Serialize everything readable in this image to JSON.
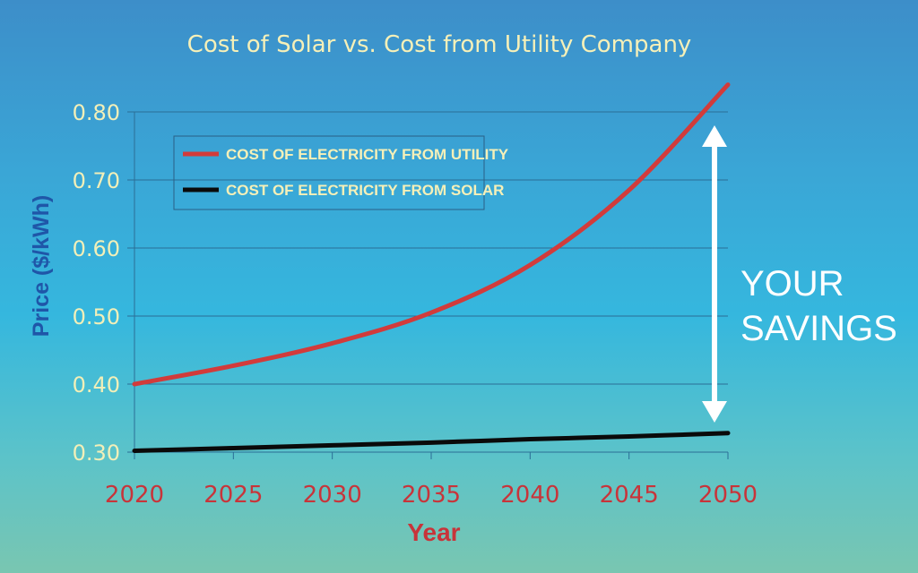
{
  "chart_data": {
    "type": "line",
    "title": "Cost of Solar vs. Cost from Utility Company",
    "xlabel": "Year",
    "ylabel": "Price ($/kWh)",
    "x": [
      2020,
      2025,
      2030,
      2035,
      2040,
      2045,
      2050
    ],
    "xlim": [
      2020,
      2050
    ],
    "ylim": [
      0.3,
      0.8
    ],
    "yticks": [
      "0.30",
      "0.40",
      "0.50",
      "0.60",
      "0.70",
      "0.80"
    ],
    "xticks": [
      "2020",
      "2025",
      "2030",
      "2035",
      "2040",
      "2045",
      "2050"
    ],
    "grid": true,
    "legend_position": "top-left",
    "series": [
      {
        "name": "COST OF ELECTRICITY FROM UTILITY",
        "color": "#d23b3b",
        "values": [
          0.4,
          0.427,
          0.46,
          0.505,
          0.575,
          0.685,
          0.84
        ]
      },
      {
        "name": "COST OF ELECTRICITY FROM SOLAR",
        "color": "#0a0a0a",
        "values": [
          0.302,
          0.306,
          0.31,
          0.314,
          0.319,
          0.323,
          0.328
        ]
      }
    ],
    "annotation": {
      "line1": "YOUR",
      "line2": "SAVINGS"
    }
  }
}
